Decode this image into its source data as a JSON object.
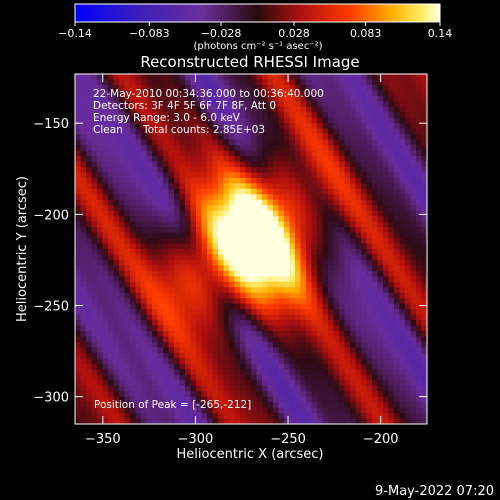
{
  "colorbar": {
    "min_label": "-0.14",
    "max_label": "0.14",
    "ticks": [
      {
        "value": -0.14,
        "label": "-0.14"
      },
      {
        "value": -0.083,
        "label": "-0.083"
      },
      {
        "value": -0.028,
        "label": "-0.028"
      },
      {
        "value": 0.028,
        "label": "0.028"
      },
      {
        "value": 0.083,
        "label": "0.083"
      },
      {
        "value": 0.14,
        "label": "0.14"
      }
    ],
    "unit_label": "(photons cm⁻² s⁻¹ asec⁻²)"
  },
  "chart_data": {
    "type": "heatmap",
    "title": "Reconstructed RHESSI Image",
    "xlabel": "Heliocentric X (arcsec)",
    "ylabel": "Heliocentric Y (arcsec)",
    "xlim": [
      -365,
      -175
    ],
    "ylim": [
      -315,
      -123
    ],
    "x_ticks": [
      -350,
      -300,
      -250,
      -200
    ],
    "y_ticks": [
      -150,
      -200,
      -250,
      -300
    ],
    "x_tick_labels": [
      "-350",
      "-300",
      "-250",
      "-200"
    ],
    "y_tick_labels": [
      "-150",
      "-200",
      "-250",
      "-300"
    ],
    "value_range": [
      -0.14,
      0.14
    ],
    "colormap": "blue-purple-red-yellow-white",
    "peak_position": [
      -265,
      -212
    ],
    "annotations": [
      "22-May-2010 00:34:36.000 to 00:36:40.000",
      "Detectors: 3F 4F 5F 6F 7F 8F, Att 0",
      "Energy Range: 3.0 - 6.0 keV",
      "Clean",
      "Total counts: 2.85E+03",
      "Position of Peak = [-265,-212]"
    ]
  },
  "footer": {
    "timestamp": "9-May-2022 07:20"
  }
}
